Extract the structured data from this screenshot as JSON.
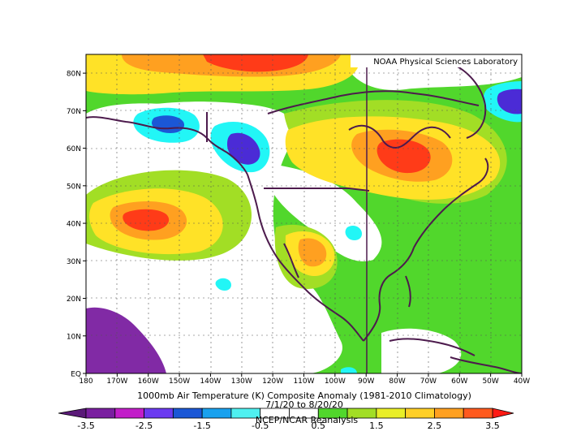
{
  "watermark": "NOAA Physical Sciences Laboratory",
  "title_line1": "1000mb Air Temperature (K) Composite Anomaly (1981-2010 Climatology)",
  "title_line2": "7/1/20 to 8/20/20",
  "credit": "NCEP/NCAR Reanalysis",
  "lat_ticks": [
    "EQ",
    "10N",
    "20N",
    "30N",
    "40N",
    "50N",
    "60N",
    "70N",
    "80N"
  ],
  "lon_ticks": [
    "180",
    "170W",
    "160W",
    "150W",
    "140W",
    "130W",
    "120W",
    "110W",
    "100W",
    "90W",
    "80W",
    "70W",
    "60W",
    "50W",
    "40W"
  ],
  "colorbar": {
    "labels": [
      "-3.5",
      "-2.5",
      "-1.5",
      "-0.5",
      "0.5",
      "1.5",
      "2.5",
      "3.5"
    ],
    "colors": [
      "#7a1fa0",
      "#c21ec9",
      "#6b3af0",
      "#1b57d6",
      "#19a1ee",
      "#4ff0f0",
      "#ffffff",
      "#ffffff",
      "#51d72c",
      "#a2de25",
      "#e9ee27",
      "#ffcf26",
      "#ffa020",
      "#ff5a1e"
    ]
  },
  "map_colors": {
    "bg": "#51d72c",
    "light_green": "#a2de25",
    "yellow": "#ffe227",
    "orange": "#ffa020",
    "red": "#ff3b18",
    "white": "#ffffff",
    "cyan": "#22f6f6",
    "blue": "#1b57d6",
    "violet": "#4b2bd6",
    "coast": "#4d1b4d"
  }
}
